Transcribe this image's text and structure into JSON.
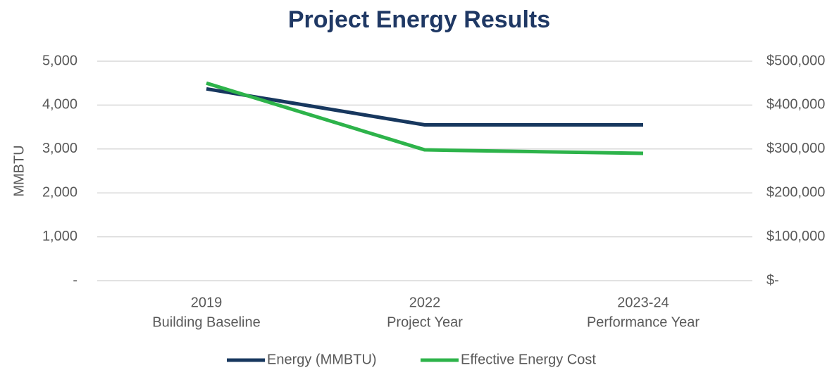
{
  "chart_data": {
    "type": "line",
    "title": "Project Energy Results",
    "categories": [
      [
        "2019",
        "Building Baseline"
      ],
      [
        "2022",
        "Project Year"
      ],
      [
        "2023-24",
        "Performance Year"
      ]
    ],
    "ylabel": "MMBTU",
    "series": [
      {
        "name": "Energy (MMBTU)",
        "color": "#17375e",
        "values": [
          4370,
          3550,
          3550
        ]
      },
      {
        "name": "Effective Energy Cost",
        "color": "#2db34a",
        "axis": "y2",
        "values": [
          450000,
          298000,
          290000
        ]
      }
    ],
    "ylim": [
      0,
      5000
    ],
    "yticks": [
      {
        "value": 0,
        "label": "-"
      },
      {
        "value": 1000,
        "label": "1,000"
      },
      {
        "value": 2000,
        "label": "2,000"
      },
      {
        "value": 3000,
        "label": "3,000"
      },
      {
        "value": 4000,
        "label": "4,000"
      },
      {
        "value": 5000,
        "label": "5,000"
      }
    ],
    "y2lim": [
      0,
      500000
    ],
    "y2ticks": [
      {
        "value": 0,
        "label": "$-"
      },
      {
        "value": 100000,
        "label": "$100,000"
      },
      {
        "value": 200000,
        "label": "$200,000"
      },
      {
        "value": 300000,
        "label": "$300,000"
      },
      {
        "value": 400000,
        "label": "$400,000"
      },
      {
        "value": 500000,
        "label": "$500,000"
      }
    ],
    "grid": true,
    "legend": "bottom"
  }
}
